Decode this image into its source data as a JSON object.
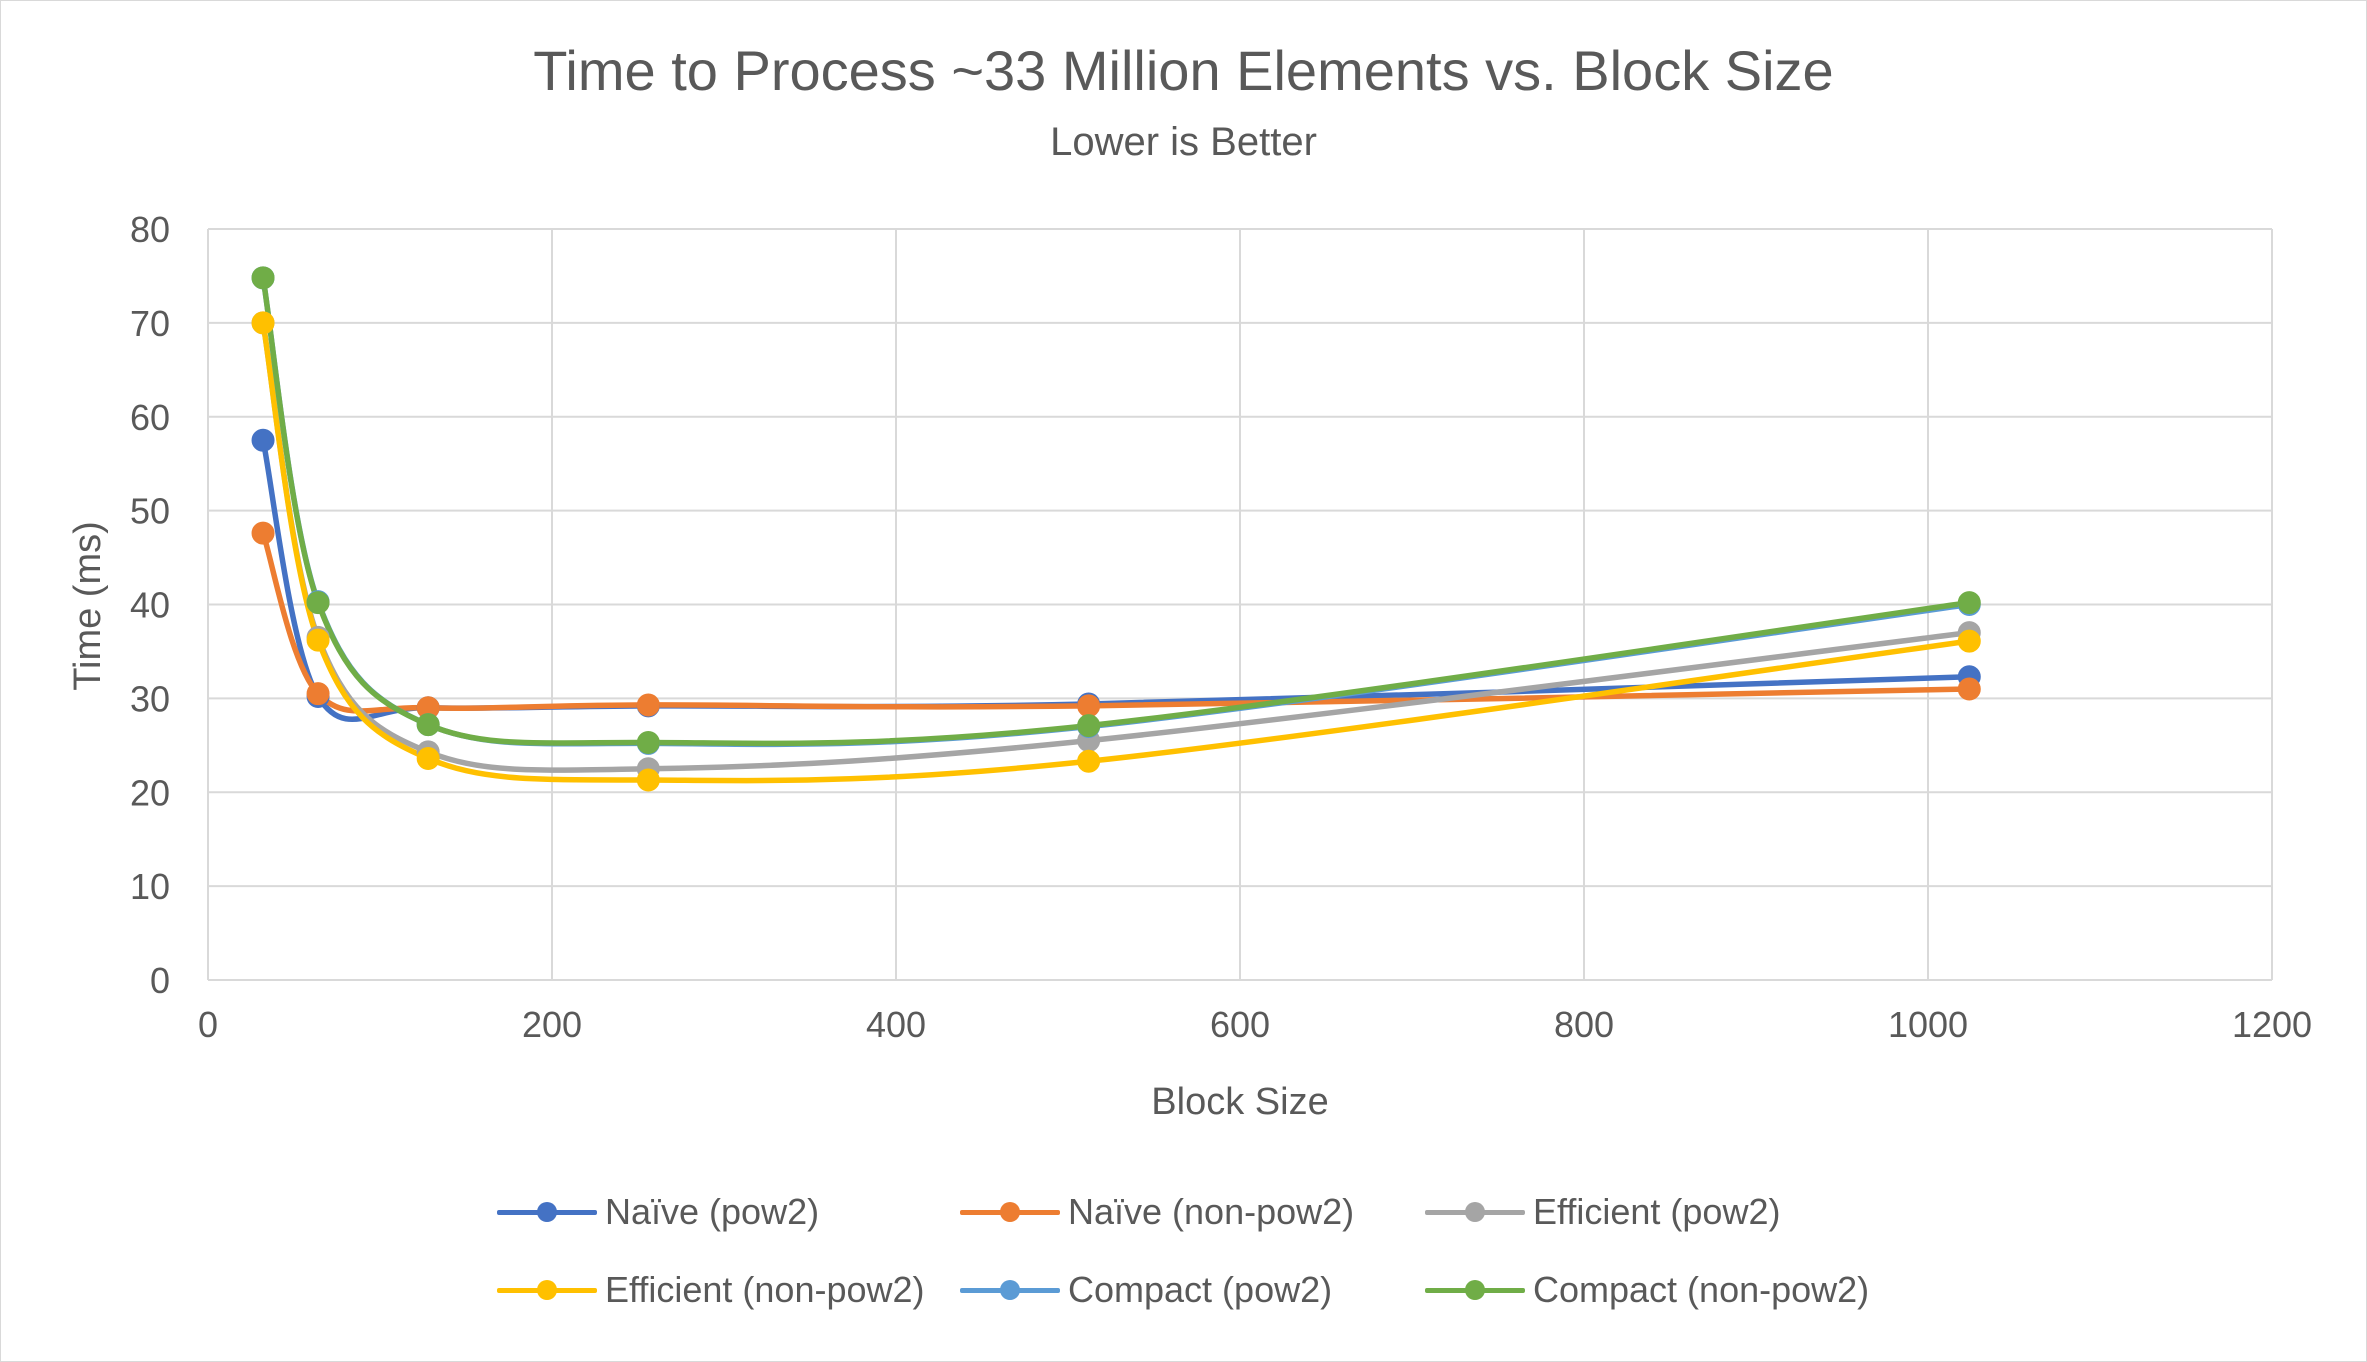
{
  "chart_data": {
    "type": "line",
    "title": "Time to Process ~33 Million Elements vs. Block Size",
    "subtitle": "Lower is Better",
    "xlabel": "Block Size",
    "ylabel": "Time (ms)",
    "xlim": [
      0,
      1200
    ],
    "ylim": [
      0,
      80
    ],
    "x_ticks": [
      0,
      200,
      400,
      600,
      800,
      1000,
      1200
    ],
    "y_ticks": [
      0,
      10,
      20,
      30,
      40,
      50,
      60,
      70,
      80
    ],
    "grid": true,
    "legend_position": "bottom",
    "x": [
      32,
      64,
      128,
      256,
      512,
      1024
    ],
    "series": [
      {
        "name": "Naïve (pow2)",
        "color": "#4472C4",
        "values": [
          57.5,
          30.2,
          29.0,
          29.2,
          29.4,
          32.3
        ]
      },
      {
        "name": "Naïve (non-pow2)",
        "color": "#ED7D31",
        "values": [
          47.6,
          30.5,
          29.0,
          29.3,
          29.2,
          31.0
        ]
      },
      {
        "name": "Efficient (pow2)",
        "color": "#A5A5A5",
        "values": [
          70.0,
          36.5,
          24.3,
          22.5,
          25.5,
          37.0
        ]
      },
      {
        "name": "Efficient (non-pow2)",
        "color": "#FFC000",
        "values": [
          70.0,
          36.2,
          23.6,
          21.3,
          23.3,
          36.1
        ]
      },
      {
        "name": "Compact (pow2)",
        "color": "#5B9BD5",
        "values": [
          74.8,
          40.3,
          27.2,
          25.2,
          27.0,
          40.0
        ]
      },
      {
        "name": "Compact (non-pow2)",
        "color": "#70AD47",
        "values": [
          74.8,
          40.2,
          27.2,
          25.3,
          27.1,
          40.2
        ]
      }
    ]
  }
}
